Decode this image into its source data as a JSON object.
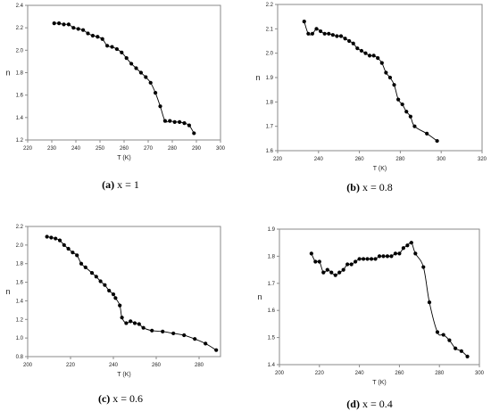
{
  "chart_data": [
    {
      "type": "line",
      "caption_letter": "(a)",
      "caption_text": " x = 1",
      "xlabel": "T (K)",
      "ylabel": "n",
      "xlim": [
        220,
        300
      ],
      "ylim": [
        1.2,
        2.4
      ],
      "xticks": [
        220,
        230,
        240,
        250,
        260,
        270,
        280,
        290,
        300
      ],
      "yticks": [
        1.2,
        1.4,
        1.6,
        1.8,
        2.0,
        2.2,
        2.4
      ],
      "x": [
        231,
        233,
        235,
        237,
        239,
        241,
        243,
        245,
        247,
        249,
        251,
        253,
        255,
        257,
        259,
        261,
        263,
        265,
        267,
        269,
        271,
        273,
        275,
        277,
        279,
        281,
        283,
        285,
        287,
        289
      ],
      "y": [
        2.24,
        2.24,
        2.23,
        2.23,
        2.2,
        2.19,
        2.18,
        2.15,
        2.13,
        2.12,
        2.1,
        2.04,
        2.03,
        2.01,
        1.98,
        1.93,
        1.88,
        1.84,
        1.8,
        1.76,
        1.71,
        1.62,
        1.5,
        1.37,
        1.37,
        1.36,
        1.36,
        1.35,
        1.33,
        1.26
      ]
    },
    {
      "type": "line",
      "caption_letter": "(b)",
      "caption_text": " x = 0.8",
      "xlabel": "T (K)",
      "ylabel": "n",
      "xlim": [
        220,
        320
      ],
      "ylim": [
        1.6,
        2.2
      ],
      "xticks": [
        220,
        240,
        260,
        280,
        300,
        320
      ],
      "yticks": [
        1.6,
        1.7,
        1.8,
        1.9,
        2.0,
        2.1,
        2.2
      ],
      "x": [
        233,
        235,
        237,
        239,
        241,
        243,
        245,
        247,
        249,
        251,
        253,
        255,
        257,
        259,
        261,
        263,
        265,
        267,
        269,
        271,
        273,
        275,
        277,
        279,
        281,
        283,
        285,
        287,
        293,
        298
      ],
      "y": [
        2.13,
        2.08,
        2.08,
        2.1,
        2.09,
        2.08,
        2.08,
        2.075,
        2.07,
        2.07,
        2.06,
        2.05,
        2.04,
        2.02,
        2.01,
        2.0,
        1.99,
        1.99,
        1.98,
        1.96,
        1.92,
        1.9,
        1.87,
        1.81,
        1.79,
        1.76,
        1.74,
        1.7,
        1.67,
        1.64
      ]
    },
    {
      "type": "line",
      "caption_letter": "(c)",
      "caption_text": " x = 0.6",
      "xlabel": "T (K)",
      "ylabel": "n",
      "xlim": [
        200,
        290
      ],
      "ylim": [
        0.8,
        2.2
      ],
      "xticks": [
        200,
        220,
        240,
        260,
        280
      ],
      "yticks": [
        0.8,
        1.0,
        1.2,
        1.4,
        1.6,
        1.8,
        2.0,
        2.2
      ],
      "x": [
        209,
        211,
        213,
        215,
        217,
        219,
        221,
        223,
        225,
        227,
        230,
        232,
        234,
        236,
        238,
        240,
        241,
        243,
        244,
        246,
        248,
        250,
        252,
        254,
        258,
        263,
        268,
        273,
        278,
        283,
        288
      ],
      "y": [
        2.09,
        2.08,
        2.07,
        2.05,
        2.0,
        1.96,
        1.92,
        1.89,
        1.8,
        1.76,
        1.7,
        1.66,
        1.61,
        1.57,
        1.51,
        1.47,
        1.43,
        1.35,
        1.22,
        1.16,
        1.18,
        1.16,
        1.15,
        1.11,
        1.08,
        1.07,
        1.05,
        1.03,
        0.99,
        0.94,
        0.87
      ]
    },
    {
      "type": "line",
      "caption_letter": "(d)",
      "caption_text": " x = 0.4",
      "xlabel": "T (K)",
      "ylabel": "n",
      "xlim": [
        200,
        300
      ],
      "ylim": [
        1.4,
        1.9
      ],
      "xticks": [
        200,
        220,
        240,
        260,
        280,
        300
      ],
      "yticks": [
        1.4,
        1.5,
        1.6,
        1.7,
        1.8,
        1.9
      ],
      "x": [
        216,
        218,
        220,
        222,
        224,
        226,
        228,
        230,
        232,
        234,
        236,
        238,
        240,
        242,
        244,
        246,
        248,
        250,
        252,
        254,
        256,
        258,
        260,
        262,
        264,
        266,
        268,
        272,
        275,
        279,
        282,
        285,
        288,
        291,
        294
      ],
      "y": [
        1.81,
        1.78,
        1.78,
        1.74,
        1.75,
        1.74,
        1.73,
        1.74,
        1.75,
        1.77,
        1.77,
        1.78,
        1.79,
        1.79,
        1.79,
        1.79,
        1.79,
        1.8,
        1.8,
        1.8,
        1.8,
        1.81,
        1.81,
        1.83,
        1.84,
        1.85,
        1.81,
        1.76,
        1.63,
        1.52,
        1.51,
        1.49,
        1.46,
        1.45,
        1.43
      ]
    }
  ]
}
